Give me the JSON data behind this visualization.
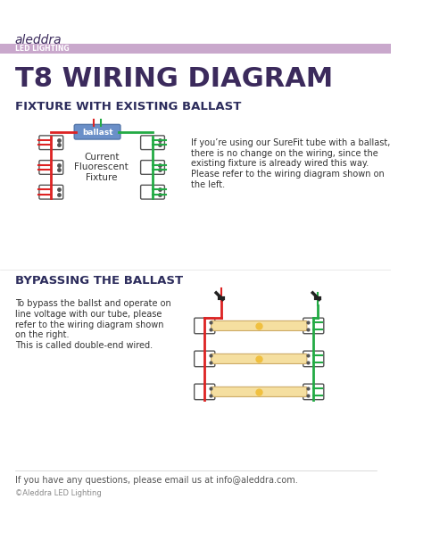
{
  "bg_color": "#ffffff",
  "header_bar_color": "#c9a8cc",
  "title_color": "#3b2a5c",
  "section_title_color": "#2c2c5c",
  "body_text_color": "#333333",
  "footer_text_color": "#555555",
  "brand_name": "aleddra",
  "brand_sub": "LED LIGHTING",
  "main_title": "T8 WIRING DIAGRAM",
  "section1_title": "FIXTURE WITH EXISTING BALLAST",
  "section1_text": "If you’re using our SureFit tube with a ballast,\nthere is no change on the wiring, since the\nexisting fixture is already wired this way.\nPlease refer to the wiring diagram shown on\nthe left.",
  "section1_label": "Current\nFluorescent\nFixture",
  "ballast_label": "ballast",
  "ballast_color": "#6a8fc8",
  "section2_title": "BYPASSING THE BALLAST",
  "section2_text": "To bypass the ballst and operate on\nline voltage with our tube, please\nrefer to the wiring diagram shown\non the right.\nThis is called double-end wired.",
  "footer_text": "If you have any questions, please email us at info@aleddra.com.",
  "copyright_text": "©Aleddra LED Lighting",
  "red_wire": "#dd2222",
  "green_wire": "#22aa44",
  "black_wire": "#222222",
  "tube_fill": "#f5dfa0",
  "tube_glow": "#f0c040",
  "connector_color": "#555555"
}
